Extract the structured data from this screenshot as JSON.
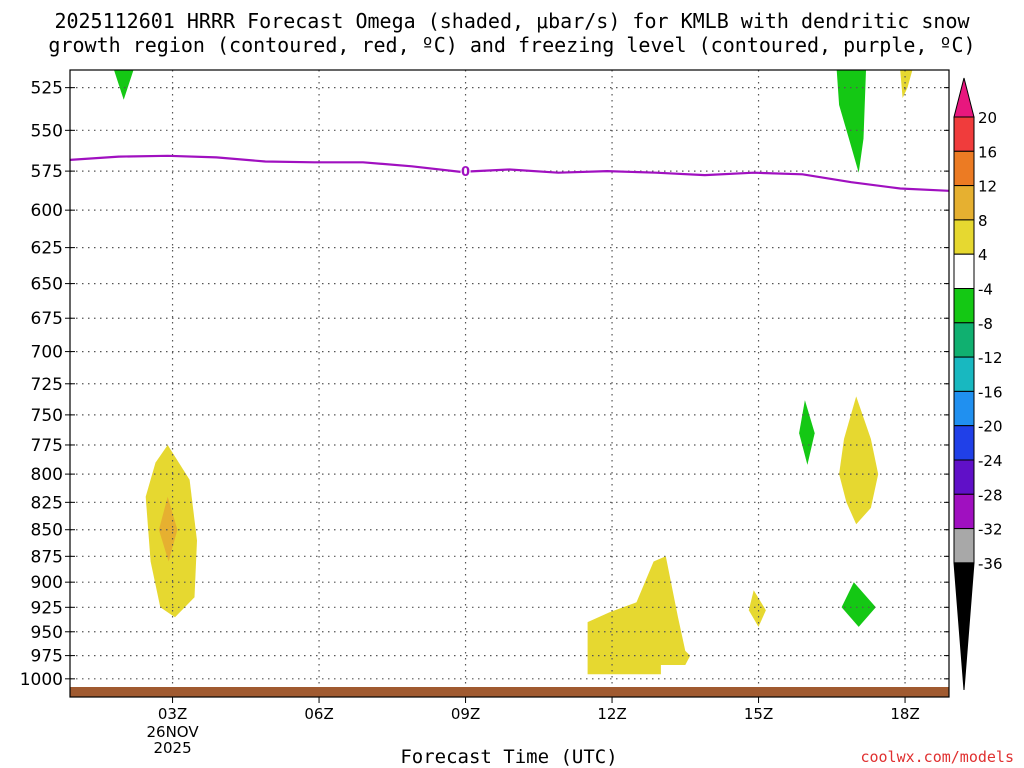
{
  "chart_data": {
    "type": "heatmap",
    "title": [
      "2025112601 HRRR Forecast Omega (shaded, μbar/s) for KMLB with dendritic snow",
      "growth region (contoured, red, ºC) and freezing level (contoured, purple, ºC)"
    ],
    "xlabel": "Forecast Time (UTC)",
    "x_ticks": [
      "03Z",
      "06Z",
      "09Z",
      "12Z",
      "15Z",
      "18Z"
    ],
    "x_tick_hours": [
      3,
      6,
      9,
      12,
      15,
      18
    ],
    "x_date_label": [
      "26NOV",
      "2025"
    ],
    "xlim": [
      0.9,
      18.9
    ],
    "ylabel": "",
    "y_ticks": [
      525,
      550,
      575,
      600,
      625,
      650,
      675,
      700,
      725,
      750,
      775,
      800,
      825,
      850,
      875,
      900,
      925,
      950,
      975,
      1000
    ],
    "ylim": [
      515,
      1020
    ],
    "y_scale": "log",
    "y_inverted": true,
    "grid": true,
    "colorbar": {
      "labels": [
        "20",
        "16",
        "12",
        "8",
        "4",
        "-4",
        "-8",
        "-12",
        "-16",
        "-20",
        "-24",
        "-28",
        "-32",
        "-36"
      ],
      "levels": [
        20,
        16,
        12,
        8,
        4,
        -4,
        -8,
        -12,
        -16,
        -20,
        -24,
        -28,
        -32,
        -36
      ],
      "colors": [
        "#e8177e",
        "#f03c3c",
        "#ec7b23",
        "#e6b030",
        "#e6d830",
        "#ffffff",
        "#14c814",
        "#10b070",
        "#18b8c0",
        "#2090f0",
        "#2040e8",
        "#6010c8",
        "#a010c0",
        "#a8a8a8",
        "#000000"
      ]
    },
    "freezing_level": {
      "color": "#a010c0",
      "label": "0",
      "label_at": [
        9.0,
        575
      ],
      "points": [
        [
          0.9,
          568
        ],
        [
          1.9,
          566
        ],
        [
          2.9,
          565.5
        ],
        [
          3.9,
          566.5
        ],
        [
          4.9,
          569
        ],
        [
          5.9,
          569.5
        ],
        [
          6.9,
          569.5
        ],
        [
          7.9,
          572
        ],
        [
          8.9,
          575.5
        ],
        [
          9.9,
          574
        ],
        [
          10.9,
          576
        ],
        [
          11.9,
          575
        ],
        [
          12.9,
          576
        ],
        [
          13.9,
          577.5
        ],
        [
          14.9,
          576
        ],
        [
          15.9,
          577
        ],
        [
          16.9,
          582
        ],
        [
          17.9,
          586
        ],
        [
          18.9,
          587.5
        ]
      ]
    },
    "shaded_regions": [
      {
        "value_range": "4 to 8",
        "color": "#e6d830",
        "points": [
          [
            2.9,
            775
          ],
          [
            3.35,
            805
          ],
          [
            3.5,
            860
          ],
          [
            3.45,
            915
          ],
          [
            3.05,
            935
          ],
          [
            2.75,
            925
          ],
          [
            2.55,
            880
          ],
          [
            2.45,
            820
          ],
          [
            2.65,
            790
          ]
        ]
      },
      {
        "value_range": "8 to 12",
        "color": "#e6b030",
        "points": [
          [
            2.9,
            820
          ],
          [
            3.1,
            850
          ],
          [
            2.92,
            880
          ],
          [
            2.72,
            850
          ]
        ]
      },
      {
        "value_range": "4 to 8",
        "color": "#e6d830",
        "points": [
          [
            11.5,
            940
          ],
          [
            11.95,
            930
          ],
          [
            12.5,
            920
          ],
          [
            12.85,
            880
          ],
          [
            13.1,
            875
          ],
          [
            13.35,
            935
          ],
          [
            13.5,
            970
          ],
          [
            13.6,
            975
          ],
          [
            13.5,
            985
          ],
          [
            13.0,
            985
          ],
          [
            13.0,
            995
          ],
          [
            11.5,
            995
          ]
        ]
      },
      {
        "value_range": "4 to 8",
        "color": "#e6d830",
        "points": [
          [
            14.9,
            908
          ],
          [
            15.15,
            928
          ],
          [
            15.0,
            945
          ],
          [
            14.8,
            928
          ]
        ]
      },
      {
        "value_range": "4 to 8",
        "color": "#e6d830",
        "points": [
          [
            17.0,
            735
          ],
          [
            17.3,
            770
          ],
          [
            17.45,
            800
          ],
          [
            17.3,
            830
          ],
          [
            17.0,
            845
          ],
          [
            16.8,
            825
          ],
          [
            16.65,
            800
          ],
          [
            16.75,
            770
          ]
        ]
      },
      {
        "value_range": "-4 to -8",
        "color": "#14c814",
        "points": [
          [
            15.95,
            738
          ],
          [
            16.15,
            765
          ],
          [
            16.0,
            792
          ],
          [
            15.83,
            765
          ]
        ]
      },
      {
        "value_range": "-4 to -8",
        "color": "#14c814",
        "points": [
          [
            16.95,
            900
          ],
          [
            17.4,
            925
          ],
          [
            17.05,
            945
          ],
          [
            16.7,
            925
          ]
        ]
      },
      {
        "value_range": "-4 to -8",
        "color": "#14c814",
        "points": [
          [
            16.6,
            515
          ],
          [
            17.2,
            515
          ],
          [
            17.15,
            555
          ],
          [
            17.05,
            576
          ],
          [
            16.85,
            555
          ],
          [
            16.65,
            535
          ]
        ]
      },
      {
        "value_range": "-4 to -8",
        "color": "#14c814",
        "points": [
          [
            1.8,
            515
          ],
          [
            2.2,
            515
          ],
          [
            2.0,
            532
          ]
        ]
      },
      {
        "value_range": "4 to 8",
        "color": "#e6d830",
        "points": [
          [
            17.9,
            515
          ],
          [
            18.15,
            515
          ],
          [
            18.05,
            525
          ],
          [
            17.95,
            531
          ]
        ]
      }
    ],
    "terrain_color": "#a05a30"
  },
  "footer": {
    "credit": "coolwx.com/models"
  }
}
